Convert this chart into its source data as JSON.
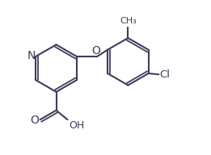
{
  "background_color": "#ffffff",
  "line_color": "#3d3d5c",
  "line_width": 1.5,
  "font_size": 8.5,
  "figsize": [
    2.61,
    1.92
  ],
  "dpi": 100,
  "xlim": [
    0.0,
    10.0
  ],
  "ylim": [
    0.0,
    7.5
  ]
}
